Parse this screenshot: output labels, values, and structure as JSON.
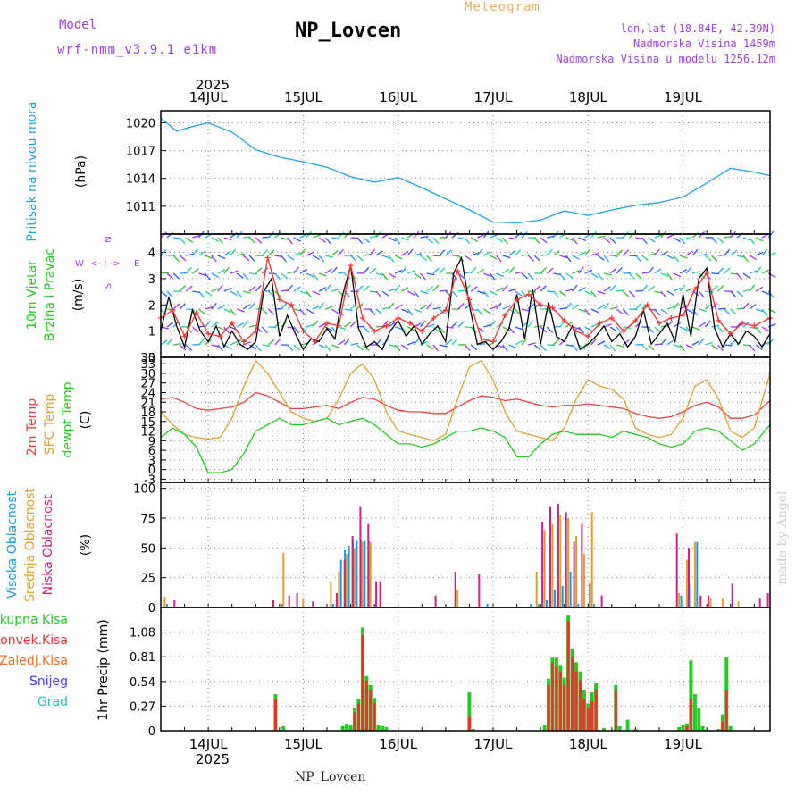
{
  "header": {
    "model_label": "Model",
    "model_value": "wrf-nmm_v3.9.1 e1km",
    "station": "NP_Lovcen",
    "product": "Meteogram",
    "loc_line1": "lon,lat (18.84E, 42.39N)",
    "loc_line2": "Nadmorska Visina 1459m",
    "loc_line3": "Nadmorska Visina u modelu 1256.12m",
    "footer": "NP_Lovcen",
    "credit": "made by Angel"
  },
  "time_axis": {
    "year": "2025",
    "days": [
      "14JUL",
      "15JUL",
      "16JUL",
      "17JUL",
      "18JUL",
      "19JUL"
    ],
    "range_hours": [
      -12,
      142
    ]
  },
  "colors": {
    "pressure": "#1fa4e8",
    "speed": "#000000",
    "gust": "#ff3030",
    "t2m": "#ee4040",
    "sfc": "#e0a030",
    "dew": "#22cc22",
    "cloud_high": "#1a9adf",
    "cloud_mid": "#e0a030",
    "cloud_low": "#cc2288",
    "rain_total": "#22cc22",
    "rain_conv": "#ee3030",
    "rain_frz": "#f07020",
    "snow": "#4040ff",
    "hail": "#20c0c0",
    "grid": "#888888"
  },
  "chart_data": [
    {
      "type": "line",
      "panel": "pressure",
      "ylabel_side": "Pritisak na nivou mora",
      "unit": "(hPa)",
      "yticks": [
        1011,
        1014,
        1017,
        1020
      ],
      "ylim": [
        1008,
        1021.3
      ],
      "series": [
        {
          "color_key": "pressure",
          "x": [
            -12,
            -8,
            -4,
            0,
            6,
            12,
            18,
            24,
            30,
            36,
            42,
            48,
            54,
            60,
            66,
            72,
            78,
            84,
            90,
            96,
            102,
            108,
            114,
            120,
            126,
            132,
            138,
            142
          ],
          "values": [
            1020.5,
            1019.1,
            1019.6,
            1020.0,
            1019.0,
            1017.1,
            1016.3,
            1015.8,
            1015.2,
            1014.2,
            1013.6,
            1014.1,
            1013.0,
            1011.8,
            1010.6,
            1009.3,
            1009.2,
            1009.5,
            1010.5,
            1010.0,
            1010.6,
            1011.1,
            1011.4,
            1012.0,
            1013.5,
            1015.1,
            1014.7,
            1014.3
          ]
        }
      ]
    },
    {
      "type": "line",
      "panel": "wind",
      "ylabel_side": [
        "10m Vjetar",
        "Brzina i Pravac"
      ],
      "unit": "(m/s)",
      "compass": {
        "n": "N",
        "s": "S",
        "w": "W",
        "e": "E"
      },
      "yticks": [
        0,
        1,
        2,
        3,
        4
      ],
      "ylim": [
        0,
        4.7
      ],
      "series": [
        {
          "name_key": "speed",
          "color_key": "speed",
          "x": [
            -12,
            -10,
            -8,
            -6,
            -4,
            -2,
            0,
            2,
            4,
            6,
            8,
            10,
            12,
            14,
            16,
            18,
            20,
            22,
            24,
            26,
            28,
            30,
            32,
            34,
            36,
            38,
            40,
            42,
            44,
            46,
            48,
            50,
            52,
            54,
            56,
            58,
            60,
            62,
            64,
            66,
            68,
            70,
            72,
            74,
            76,
            78,
            80,
            82,
            84,
            86,
            88,
            90,
            92,
            94,
            96,
            98,
            100,
            102,
            104,
            106,
            108,
            110,
            112,
            114,
            116,
            118,
            120,
            122,
            124,
            126,
            128,
            130,
            132,
            134,
            136,
            138,
            140,
            142
          ],
          "values": [
            1.0,
            2.3,
            1.2,
            0.4,
            1.8,
            1.0,
            0.6,
            1.2,
            0.4,
            1.0,
            0.5,
            0.3,
            0.6,
            2.5,
            3.0,
            0.8,
            1.6,
            0.9,
            0.3,
            0.7,
            0.6,
            1.1,
            0.7,
            2.4,
            3.5,
            1.1,
            0.4,
            0.6,
            0.3,
            1.0,
            1.4,
            0.8,
            1.2,
            0.5,
            0.9,
            1.2,
            0.6,
            3.2,
            3.8,
            2.0,
            0.5,
            0.6,
            0.3,
            0.6,
            1.1,
            2.4,
            0.7,
            2.6,
            0.5,
            2.1,
            0.8,
            0.6,
            1.2,
            0.3,
            0.5,
            0.8,
            1.2,
            0.6,
            0.9,
            0.4,
            0.8,
            1.8,
            0.5,
            0.9,
            1.3,
            0.6,
            2.4,
            0.8,
            3.0,
            3.4,
            1.1,
            0.4,
            0.9,
            0.5,
            1.0,
            0.8,
            0.4,
            0.9
          ]
        },
        {
          "name_key": "gust",
          "color_key": "gust",
          "x": [
            -12,
            -9,
            -6,
            -3,
            0,
            3,
            6,
            9,
            12,
            15,
            18,
            21,
            24,
            27,
            30,
            33,
            36,
            39,
            42,
            45,
            48,
            51,
            54,
            57,
            60,
            63,
            66,
            69,
            72,
            75,
            78,
            81,
            84,
            87,
            90,
            93,
            96,
            99,
            102,
            105,
            108,
            111,
            114,
            117,
            120,
            123,
            126,
            129,
            132,
            135,
            138,
            142
          ],
          "values": [
            1.5,
            1.8,
            0.8,
            1.7,
            0.9,
            0.8,
            1.3,
            0.6,
            1.0,
            3.8,
            2.2,
            2.0,
            1.0,
            0.6,
            1.3,
            1.2,
            3.5,
            1.5,
            1.0,
            1.2,
            1.5,
            1.3,
            1.0,
            1.5,
            1.8,
            3.3,
            2.2,
            0.7,
            0.6,
            1.6,
            2.2,
            2.4,
            2.0,
            1.9,
            1.4,
            1.0,
            0.8,
            1.3,
            1.5,
            1.0,
            1.4,
            2.0,
            1.3,
            1.5,
            1.6,
            2.6,
            3.2,
            1.4,
            0.9,
            1.3,
            1.2,
            1.5
          ]
        }
      ]
    },
    {
      "type": "line",
      "panel": "temperature",
      "ylabel_side": [
        "2m Temp",
        "SFC Temp",
        "dewpt Temp"
      ],
      "unit": "(C)",
      "yticks": [
        -3,
        0,
        3,
        6,
        9,
        12,
        15,
        18,
        21,
        24,
        27,
        30,
        33,
        35
      ],
      "ylim": [
        -4,
        35
      ],
      "series": [
        {
          "name_key": "t2m",
          "color_key": "t2m",
          "x": [
            -12,
            -9,
            -6,
            -3,
            0,
            3,
            6,
            9,
            12,
            15,
            18,
            21,
            24,
            27,
            30,
            33,
            36,
            39,
            42,
            45,
            48,
            51,
            54,
            57,
            60,
            63,
            66,
            69,
            72,
            75,
            78,
            81,
            84,
            87,
            90,
            93,
            96,
            99,
            102,
            105,
            108,
            111,
            114,
            117,
            120,
            123,
            126,
            129,
            132,
            135,
            138,
            142
          ],
          "values": [
            22,
            22.5,
            21,
            19,
            18.5,
            19,
            19.5,
            21,
            24,
            23,
            21,
            19,
            19,
            19.5,
            20,
            19,
            21,
            22.5,
            22,
            20,
            18.5,
            18,
            18,
            17.5,
            17.5,
            19.5,
            21.5,
            23,
            22.5,
            21.5,
            22,
            21,
            20,
            19.5,
            20,
            20,
            20.5,
            20,
            19.5,
            19,
            17.5,
            16.5,
            16,
            16.5,
            18,
            20,
            21,
            19.5,
            16,
            16,
            17,
            21.5
          ]
        },
        {
          "name_key": "sfc",
          "color_key": "sfc",
          "x": [
            -12,
            -9,
            -6,
            -3,
            0,
            3,
            6,
            9,
            12,
            15,
            18,
            21,
            24,
            27,
            30,
            33,
            36,
            39,
            42,
            45,
            48,
            51,
            54,
            57,
            60,
            63,
            66,
            69,
            72,
            75,
            78,
            81,
            84,
            87,
            90,
            93,
            96,
            99,
            102,
            105,
            108,
            111,
            114,
            117,
            120,
            123,
            126,
            129,
            132,
            135,
            138,
            142
          ],
          "values": [
            18,
            14,
            11,
            10,
            9.5,
            10,
            16,
            26,
            34,
            30,
            24,
            18,
            16,
            15,
            16,
            22,
            30,
            33,
            28,
            18,
            12,
            11,
            10,
            9,
            11,
            22,
            32,
            34,
            28,
            18,
            12,
            11,
            10,
            9,
            13,
            22,
            28,
            26,
            25,
            22,
            13,
            11,
            10,
            11,
            16,
            26,
            28,
            22,
            12,
            10,
            13,
            30
          ]
        },
        {
          "name_key": "dew",
          "color_key": "dew",
          "x": [
            -12,
            -9,
            -6,
            -3,
            0,
            3,
            6,
            9,
            12,
            15,
            18,
            21,
            24,
            27,
            30,
            33,
            36,
            39,
            42,
            45,
            48,
            51,
            54,
            57,
            60,
            63,
            66,
            69,
            72,
            75,
            78,
            81,
            84,
            87,
            90,
            93,
            96,
            99,
            102,
            105,
            108,
            111,
            114,
            117,
            120,
            123,
            126,
            129,
            132,
            135,
            138,
            142
          ],
          "values": [
            10,
            13,
            11,
            7,
            -1,
            -1,
            0,
            5,
            12,
            14,
            16,
            14,
            14,
            15,
            16,
            14,
            15,
            16,
            14,
            11,
            8,
            8,
            7,
            8,
            10,
            12,
            12,
            13,
            12,
            10,
            4,
            4,
            8,
            11,
            12,
            11,
            11,
            11,
            10,
            12,
            11,
            10,
            8,
            7,
            8,
            12,
            13,
            12,
            9,
            6,
            8,
            14
          ]
        }
      ]
    },
    {
      "type": "bar",
      "panel": "cloud",
      "ylabel_side": [
        "Visoka Oblacnost",
        "Srednja Oblacnost",
        "Niska Oblacnost"
      ],
      "unit": "(%)",
      "yticks": [
        0,
        25,
        50,
        75,
        100
      ],
      "ylim": [
        0,
        105
      ],
      "series": [
        {
          "name_key": "cloud_high",
          "color_key": "cloud_high",
          "x": [
            -10,
            19,
            32,
            34,
            35,
            36,
            37,
            38,
            39,
            40,
            41,
            71,
            82,
            84,
            86,
            88,
            90,
            92,
            94,
            98,
            120,
            122,
            124
          ],
          "values": [
            3,
            3,
            3,
            40,
            48,
            52,
            56,
            56,
            57,
            56,
            56,
            3,
            3,
            3,
            6,
            15,
            18,
            30,
            3,
            3,
            10,
            20,
            55
          ]
        },
        {
          "name_key": "cloud_mid",
          "color_key": "cloud_mid",
          "x": [
            -11,
            19,
            24,
            31,
            33,
            35,
            37,
            39,
            41,
            63,
            83,
            85,
            87,
            89,
            91,
            93,
            95,
            97,
            119,
            121,
            123,
            127,
            130,
            134
          ],
          "values": [
            9,
            46,
            8,
            22,
            30,
            45,
            50,
            55,
            55,
            15,
            30,
            65,
            70,
            78,
            75,
            60,
            45,
            80,
            12,
            40,
            55,
            8,
            8,
            5
          ]
        },
        {
          "name_key": "cloud_low",
          "color_key": "cloud_low",
          "x": [
            -9,
            16,
            20,
            22,
            26,
            32,
            34,
            36,
            38,
            40,
            42,
            43,
            57,
            62,
            68,
            84,
            86,
            88,
            90,
            92,
            94,
            96,
            99,
            118,
            121,
            124,
            126,
            132,
            139,
            141
          ],
          "values": [
            6,
            6,
            10,
            12,
            5,
            12,
            40,
            60,
            85,
            70,
            22,
            22,
            10,
            30,
            28,
            72,
            85,
            87,
            80,
            55,
            70,
            20,
            10,
            62,
            50,
            10,
            10,
            20,
            8,
            12
          ]
        }
      ]
    },
    {
      "type": "bar",
      "panel": "precip",
      "ylabel_side": [
        "Ukupna Kisa",
        "Konvek.Kisa",
        "Zaledj.Kisa",
        "Snijeg",
        "Grad"
      ],
      "unit": "1hr Precip (mm)",
      "yticks": [
        0,
        0.27,
        0.54,
        0.81,
        1.08
      ],
      "ylim": [
        0,
        1.35
      ],
      "series": [
        {
          "name_key": "rain_total",
          "color_key": "rain_total",
          "x": [
            17,
            19,
            34,
            35,
            36,
            37,
            38,
            39,
            40,
            41,
            42,
            43,
            44,
            45,
            66,
            67,
            85,
            86,
            87,
            88,
            89,
            90,
            91,
            92,
            93,
            94,
            95,
            96,
            97,
            98,
            100,
            103,
            104,
            106,
            108,
            119,
            120,
            121,
            122,
            123,
            124,
            125,
            129,
            130,
            131,
            132
          ],
          "values": [
            0.4,
            0.05,
            0.05,
            0.07,
            0.06,
            0.25,
            0.35,
            1.13,
            0.6,
            0.5,
            0.36,
            0.06,
            0.05,
            0.04,
            0.42,
            0.02,
            0.06,
            0.57,
            0.8,
            0.8,
            0.72,
            0.58,
            1.27,
            0.9,
            0.75,
            0.65,
            0.45,
            0.3,
            0.42,
            0.52,
            0.03,
            0.5,
            0.05,
            0.12,
            0.02,
            0.04,
            0.06,
            0.08,
            0.77,
            0.4,
            0.25,
            0.05,
            0.02,
            0.18,
            0.8,
            0.05
          ]
        },
        {
          "name_key": "rain_conv",
          "color_key": "rain_conv",
          "x": [
            17,
            37,
            38,
            39,
            40,
            41,
            42,
            66,
            86,
            87,
            88,
            89,
            90,
            91,
            92,
            93,
            94,
            95,
            96,
            97,
            98,
            103,
            121,
            122,
            130,
            131
          ],
          "values": [
            0.35,
            0.2,
            0.3,
            1.05,
            0.55,
            0.45,
            0.3,
            0.15,
            0.5,
            0.75,
            0.7,
            0.65,
            0.5,
            1.2,
            0.8,
            0.65,
            0.55,
            0.35,
            0.25,
            0.32,
            0.45,
            0.45,
            0.05,
            0.35,
            0.1,
            0.45
          ]
        }
      ]
    }
  ]
}
